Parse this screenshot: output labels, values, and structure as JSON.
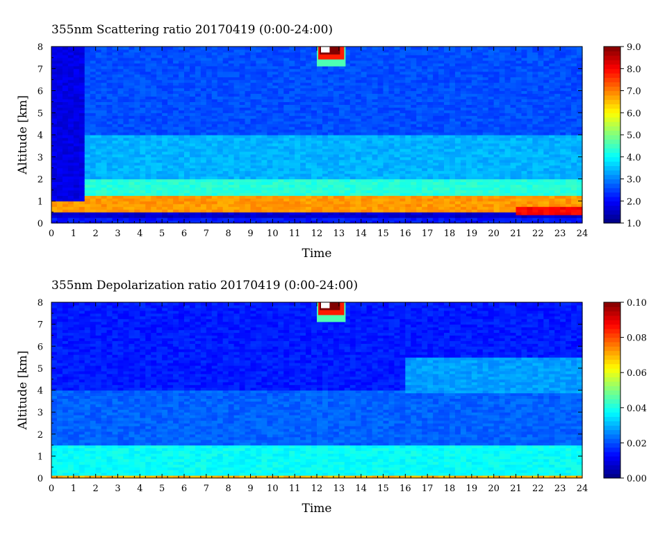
{
  "chart_data": [
    {
      "type": "heatmap",
      "title": "355nm Scattering ratio  20170419 (0:00-24:00)",
      "xlabel": "Time",
      "ylabel": "Altitude [km]",
      "xlim": [
        0,
        24
      ],
      "ylim": [
        0,
        8
      ],
      "x_ticks": [
        "0",
        "1",
        "2",
        "3",
        "4",
        "5",
        "6",
        "7",
        "8",
        "9",
        "10",
        "11",
        "12",
        "13",
        "14",
        "15",
        "16",
        "17",
        "18",
        "19",
        "20",
        "21",
        "22",
        "23",
        "24"
      ],
      "y_ticks": [
        "0",
        "1",
        "2",
        "3",
        "4",
        "5",
        "6",
        "7",
        "8"
      ],
      "colorbar": {
        "min": 1.0,
        "max": 9.0,
        "ticks": [
          "1.0",
          "2.0",
          "3.0",
          "4.0",
          "5.0",
          "6.0",
          "7.0",
          "8.0",
          "9.0"
        ]
      },
      "layers": [
        {
          "from_km": 0.0,
          "to_km": 0.3,
          "value": 2.2
        },
        {
          "from_km": 0.3,
          "to_km": 0.45,
          "value": 1.6
        },
        {
          "from_km": 0.45,
          "to_km": 1.2,
          "value": 6.8
        },
        {
          "from_km": 1.2,
          "to_km": 2.0,
          "value": 4.3
        },
        {
          "from_km": 2.0,
          "to_km": 4.0,
          "value": 3.4
        },
        {
          "from_km": 4.0,
          "to_km": 8.0,
          "value": 2.6
        }
      ],
      "features": [
        {
          "name": "early-morning low values",
          "time_from": 0.0,
          "time_to": 1.5,
          "alt_from_km": 1.0,
          "alt_to_km": 8.0,
          "value": 1.8
        },
        {
          "name": "cloud near top",
          "time_from": 12.0,
          "time_to": 13.3,
          "alt_from_km": 7.1,
          "alt_to_km": 8.0,
          "value": 9.0
        },
        {
          "name": "low aerosol layer after 21h",
          "time_from": 20.9,
          "time_to": 24.0,
          "alt_from_km": 0.4,
          "alt_to_km": 0.8,
          "value": 8.0
        }
      ]
    },
    {
      "type": "heatmap",
      "title": "355nm Depolarization ratio  20170419 (0:00-24:00)",
      "xlabel": "Time",
      "ylabel": "Altitude [km]",
      "xlim": [
        0,
        24
      ],
      "ylim": [
        0,
        8
      ],
      "x_ticks": [
        "0",
        "1",
        "2",
        "3",
        "4",
        "5",
        "6",
        "7",
        "8",
        "9",
        "10",
        "11",
        "12",
        "13",
        "14",
        "15",
        "16",
        "17",
        "18",
        "19",
        "20",
        "21",
        "22",
        "23",
        "24"
      ],
      "y_ticks": [
        "0",
        "1",
        "2",
        "3",
        "4",
        "5",
        "6",
        "7",
        "8"
      ],
      "colorbar": {
        "min": 0.0,
        "max": 0.1,
        "ticks": [
          "0.00",
          "0.02",
          "0.04",
          "0.06",
          "0.08",
          "0.10"
        ]
      },
      "layers": [
        {
          "from_km": 0.0,
          "to_km": 0.1,
          "value": 0.07
        },
        {
          "from_km": 0.1,
          "to_km": 1.5,
          "value": 0.038
        },
        {
          "from_km": 1.5,
          "to_km": 4.0,
          "value": 0.022
        },
        {
          "from_km": 4.0,
          "to_km": 8.0,
          "value": 0.015
        }
      ],
      "features": [
        {
          "name": "cloud near top",
          "time_from": 12.0,
          "time_to": 13.3,
          "alt_from_km": 7.1,
          "alt_to_km": 8.0,
          "value": 0.1
        },
        {
          "name": "elevated layer late day",
          "time_from": 16.0,
          "time_to": 24.0,
          "alt_from_km": 3.9,
          "alt_to_km": 5.5,
          "value": 0.028
        }
      ]
    }
  ]
}
